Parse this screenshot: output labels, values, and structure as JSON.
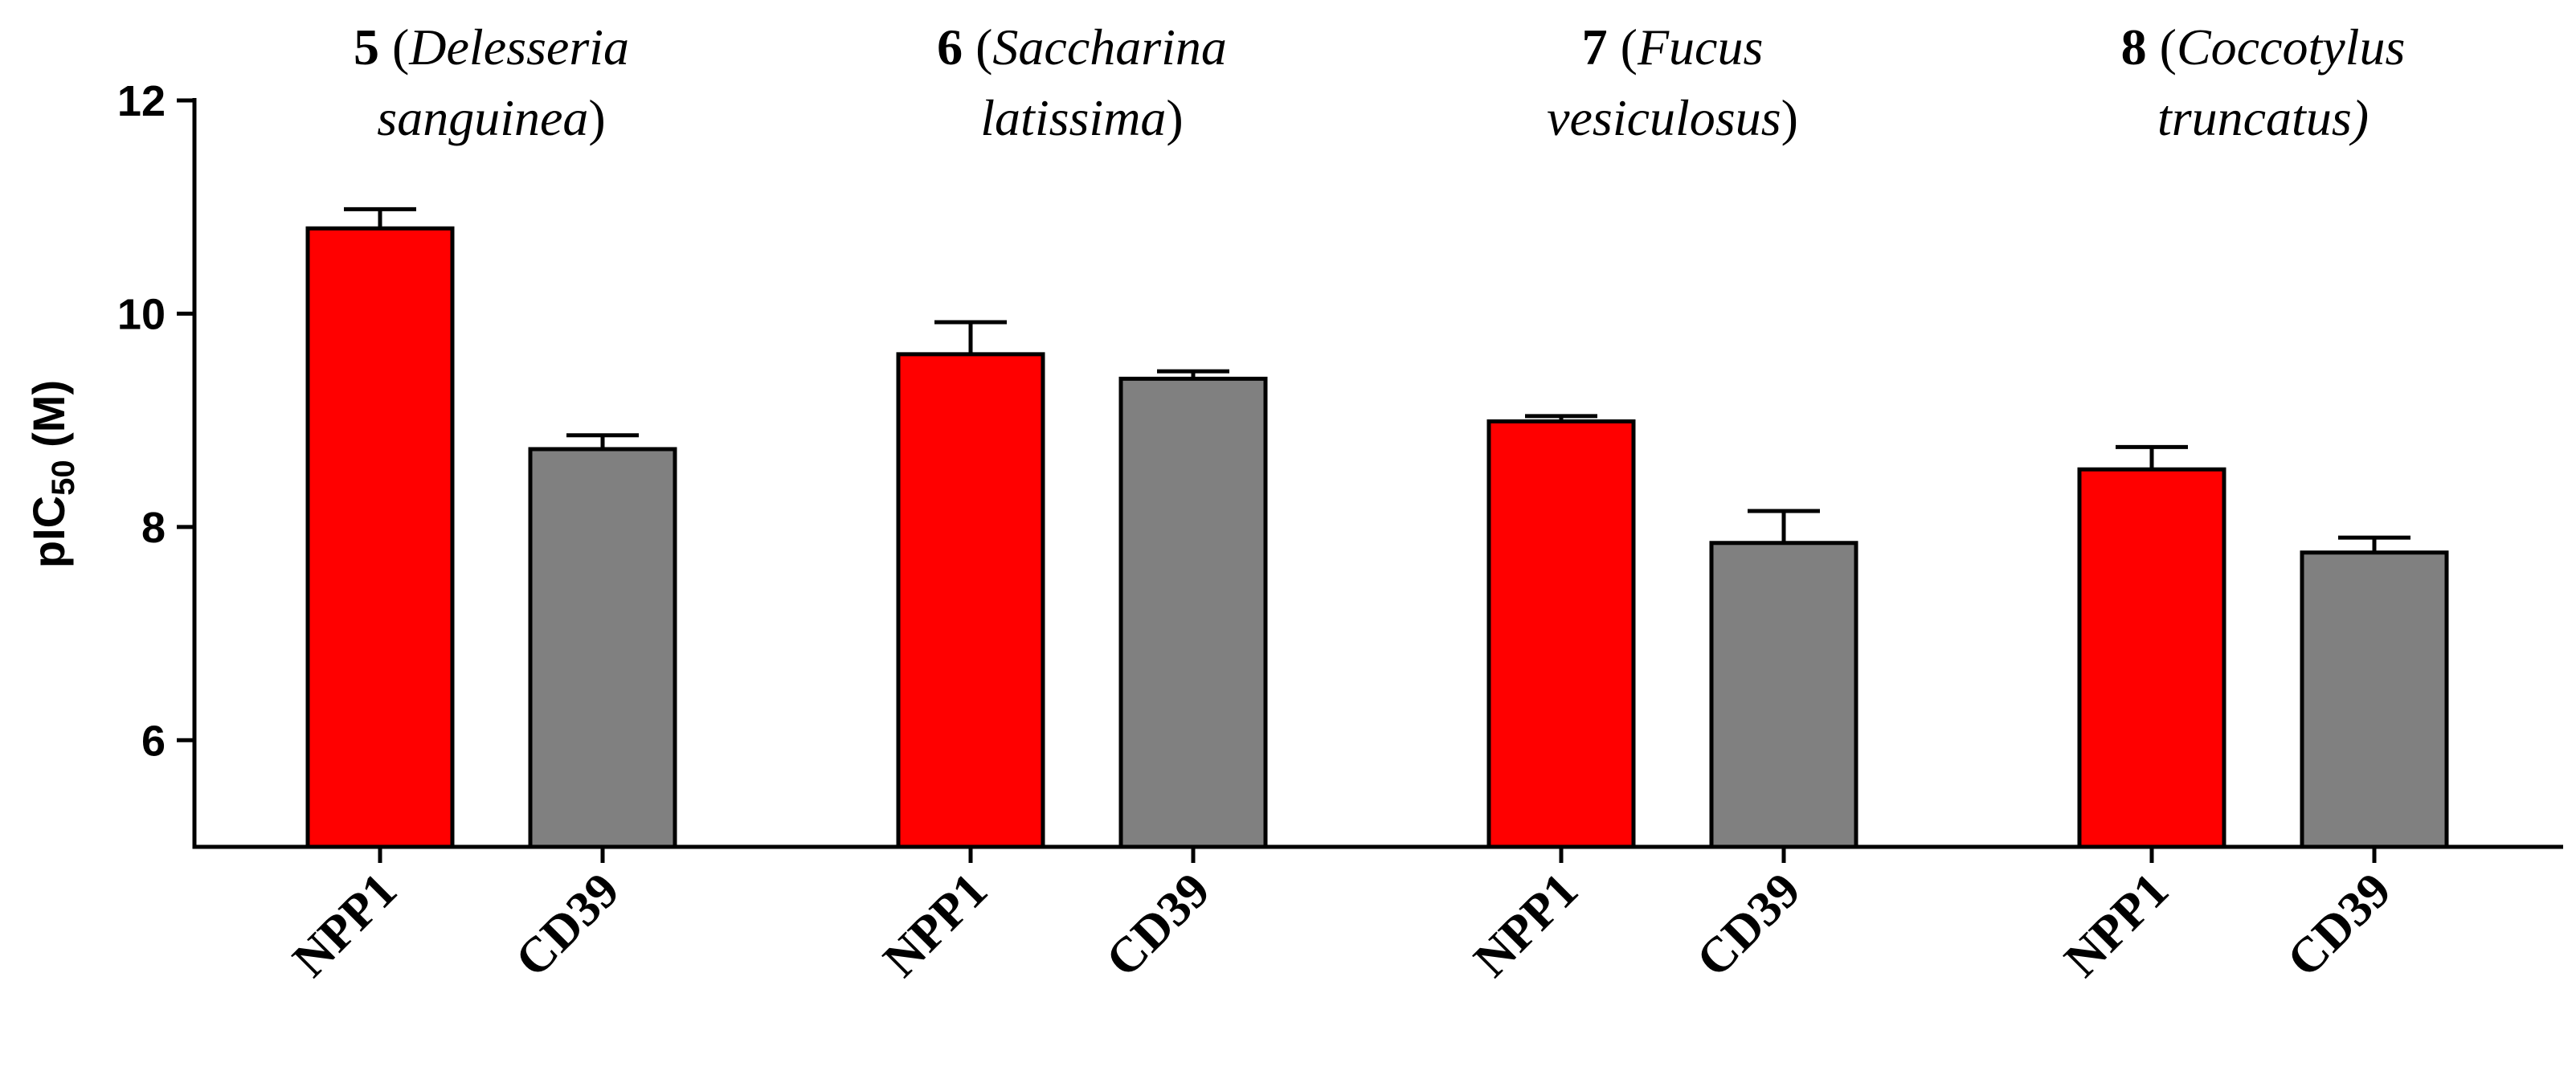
{
  "chart_data": {
    "type": "bar",
    "ylabel_main": "pIC",
    "ylabel_sub": "50",
    "ylabel_unit": " (M)",
    "ylim": [
      5,
      12
    ],
    "yticks": [
      6,
      8,
      10,
      12
    ],
    "grid": false,
    "colors": {
      "NPP1": "#ff0000",
      "CD39": "#808080"
    },
    "groups": [
      {
        "compound": "5",
        "species_line1": "Delesseria",
        "species_line2": "sanguinea",
        "close2": ")",
        "bars": [
          {
            "label": "NPP1",
            "value": 10.8,
            "error": 0.18
          },
          {
            "label": "CD39",
            "value": 8.73,
            "error": 0.13
          }
        ]
      },
      {
        "compound": "6",
        "species_line1": "Saccharina",
        "species_line2": "latissima",
        "close2": ")",
        "bars": [
          {
            "label": "NPP1",
            "value": 9.62,
            "error": 0.3
          },
          {
            "label": "CD39",
            "value": 9.39,
            "error": 0.07
          }
        ]
      },
      {
        "compound": "7",
        "species_line1": "Fucus",
        "species_line2": "vesiculosus",
        "close2": ")",
        "bars": [
          {
            "label": "NPP1",
            "value": 8.99,
            "error": 0.05
          },
          {
            "label": "CD39",
            "value": 7.85,
            "error": 0.3
          }
        ]
      },
      {
        "compound": "8",
        "species_line1": "Coccotylus",
        "species_line2": "truncatus)",
        "close2": "",
        "bars": [
          {
            "label": "NPP1",
            "value": 8.54,
            "error": 0.21
          },
          {
            "label": "CD39",
            "value": 7.76,
            "error": 0.14
          }
        ]
      }
    ]
  }
}
